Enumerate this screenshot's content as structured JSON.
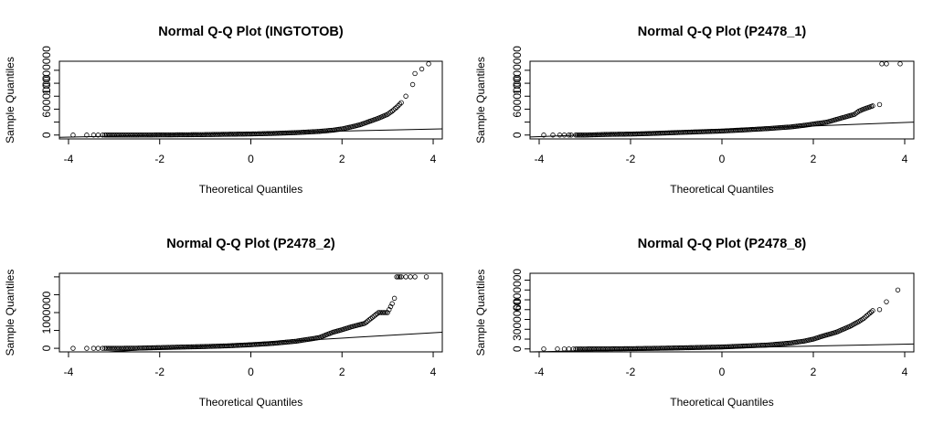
{
  "chart_data": [
    {
      "type": "scatter",
      "title": "Normal Q-Q Plot (INGTOTOB)",
      "xlabel": "Theoretical Quantiles",
      "ylabel": "Sample Quantiles",
      "xlim": [
        -4.2,
        4.2
      ],
      "ylim": [
        -600000,
        11400000
      ],
      "xticks": [
        -4,
        -2,
        0,
        2,
        4
      ],
      "yticks": [
        0,
        2000000,
        4000000,
        6000000,
        8000000,
        10000000
      ],
      "ytick_labels": [
        "0",
        "",
        "",
        "6000000",
        "",
        "10000000"
      ],
      "reference_line": [
        [
          -4.2,
          -350000
        ],
        [
          4.2,
          950000
        ]
      ],
      "points": [
        [
          -3.9,
          0
        ],
        [
          -3.6,
          0
        ],
        [
          -3.45,
          0
        ],
        [
          -3.35,
          0
        ],
        [
          -3.25,
          0
        ],
        [
          -3.2,
          0
        ],
        [
          -3.0,
          0
        ],
        [
          -2.5,
          0
        ],
        [
          -2.0,
          20000
        ],
        [
          -1.5,
          40000
        ],
        [
          -1.0,
          70000
        ],
        [
          -0.5,
          120000
        ],
        [
          0,
          170000
        ],
        [
          0.5,
          250000
        ],
        [
          1.0,
          380000
        ],
        [
          1.5,
          560000
        ],
        [
          1.8,
          750000
        ],
        [
          2.0,
          950000
        ],
        [
          2.2,
          1250000
        ],
        [
          2.4,
          1600000
        ],
        [
          2.6,
          2100000
        ],
        [
          2.8,
          2600000
        ],
        [
          3.0,
          3200000
        ],
        [
          3.1,
          3700000
        ],
        [
          3.2,
          4300000
        ],
        [
          3.3,
          5000000
        ],
        [
          3.4,
          6000000
        ],
        [
          3.55,
          7800000
        ],
        [
          3.6,
          9500000
        ],
        [
          3.75,
          10200000
        ],
        [
          3.9,
          11000000
        ]
      ]
    },
    {
      "type": "scatter",
      "title": "Normal Q-Q Plot (P2478_1)",
      "xlabel": "Theoretical Quantiles",
      "ylabel": "Sample Quantiles",
      "xlim": [
        -4.2,
        4.2
      ],
      "ylim": [
        -600000,
        11400000
      ],
      "xticks": [
        -4,
        -2,
        0,
        2,
        4
      ],
      "yticks": [
        0,
        2000000,
        4000000,
        6000000,
        8000000,
        10000000
      ],
      "ytick_labels": [
        "0",
        "",
        "",
        "6000000",
        "",
        "10000000"
      ],
      "reference_line": [
        [
          -4.2,
          -300000
        ],
        [
          4.2,
          2000000
        ]
      ],
      "points": [
        [
          -3.9,
          0
        ],
        [
          -3.7,
          0
        ],
        [
          -3.55,
          0
        ],
        [
          -3.45,
          0
        ],
        [
          -3.35,
          0
        ],
        [
          -3.3,
          0
        ],
        [
          -3.2,
          0
        ],
        [
          -3.0,
          0
        ],
        [
          -2.5,
          100000
        ],
        [
          -2.0,
          150000
        ],
        [
          -1.5,
          250000
        ],
        [
          -1.0,
          380000
        ],
        [
          -0.5,
          500000
        ],
        [
          0,
          620000
        ],
        [
          0.5,
          800000
        ],
        [
          1.0,
          1000000
        ],
        [
          1.5,
          1250000
        ],
        [
          1.8,
          1500000
        ],
        [
          2.0,
          1700000
        ],
        [
          2.3,
          2000000
        ],
        [
          2.6,
          2600000
        ],
        [
          2.9,
          3200000
        ],
        [
          3.0,
          3700000
        ],
        [
          3.1,
          4000000
        ],
        [
          3.3,
          4500000
        ],
        [
          3.45,
          4700000
        ],
        [
          3.5,
          11000000
        ],
        [
          3.6,
          11000000
        ],
        [
          3.9,
          11000000
        ]
      ]
    },
    {
      "type": "scatter",
      "title": "Normal Q-Q Plot (P2478_2)",
      "xlabel": "Theoretical Quantiles",
      "ylabel": "Sample Quantiles",
      "xlim": [
        -4.2,
        4.2
      ],
      "ylim": [
        -100000,
        2100000
      ],
      "xticks": [
        -4,
        -2,
        0,
        2,
        4
      ],
      "yticks": [
        0,
        500000,
        1000000,
        1500000,
        2000000
      ],
      "ytick_labels": [
        "0",
        "",
        "1000000",
        "",
        ""
      ],
      "reference_line": [
        [
          -4.2,
          -180000
        ],
        [
          4.2,
          450000
        ]
      ],
      "points": [
        [
          -3.9,
          0
        ],
        [
          -3.6,
          0
        ],
        [
          -3.45,
          0
        ],
        [
          -3.35,
          0
        ],
        [
          -3.25,
          0
        ],
        [
          -3.2,
          0
        ],
        [
          -3.0,
          0
        ],
        [
          -2.5,
          5000
        ],
        [
          -2.0,
          20000
        ],
        [
          -1.5,
          35000
        ],
        [
          -1.0,
          50000
        ],
        [
          -0.5,
          70000
        ],
        [
          0,
          100000
        ],
        [
          0.5,
          140000
        ],
        [
          1.0,
          200000
        ],
        [
          1.5,
          300000
        ],
        [
          1.8,
          450000
        ],
        [
          2.0,
          520000
        ],
        [
          2.2,
          600000
        ],
        [
          2.5,
          700000
        ],
        [
          2.8,
          1000000
        ],
        [
          3.0,
          1000000
        ],
        [
          3.1,
          1250000
        ],
        [
          3.15,
          1400000
        ],
        [
          3.2,
          2000000
        ],
        [
          3.3,
          2000000
        ],
        [
          3.4,
          2000000
        ],
        [
          3.5,
          2000000
        ],
        [
          3.6,
          2000000
        ],
        [
          3.85,
          2000000
        ]
      ]
    },
    {
      "type": "scatter",
      "title": "Normal Q-Q Plot (P2478_8)",
      "xlabel": "Theoretical Quantiles",
      "ylabel": "Sample Quantiles",
      "xlim": [
        -4.2,
        4.2
      ],
      "ylim": [
        -300000,
        7700000
      ],
      "xticks": [
        -4,
        -2,
        0,
        2,
        4
      ],
      "yticks": [
        0,
        1000000,
        2000000,
        3000000,
        4000000,
        5000000,
        6000000,
        7000000
      ],
      "ytick_labels": [
        "0",
        "",
        "",
        "3000000",
        "",
        "",
        "6000000",
        ""
      ],
      "reference_line": [
        [
          -4.2,
          -300000
        ],
        [
          4.2,
          500000
        ]
      ],
      "points": [
        [
          -3.9,
          0
        ],
        [
          -3.6,
          0
        ],
        [
          -3.45,
          0
        ],
        [
          -3.35,
          0
        ],
        [
          -3.25,
          0
        ],
        [
          -3.2,
          0
        ],
        [
          -3.0,
          0
        ],
        [
          -2.5,
          10000
        ],
        [
          -2.0,
          30000
        ],
        [
          -1.5,
          60000
        ],
        [
          -1.0,
          100000
        ],
        [
          -0.5,
          150000
        ],
        [
          0,
          200000
        ],
        [
          0.5,
          300000
        ],
        [
          1.0,
          400000
        ],
        [
          1.5,
          600000
        ],
        [
          1.8,
          800000
        ],
        [
          2.0,
          1000000
        ],
        [
          2.2,
          1300000
        ],
        [
          2.5,
          1700000
        ],
        [
          2.8,
          2300000
        ],
        [
          3.0,
          2800000
        ],
        [
          3.1,
          3100000
        ],
        [
          3.2,
          3500000
        ],
        [
          3.3,
          3900000
        ],
        [
          3.45,
          4000000
        ],
        [
          3.6,
          4800000
        ],
        [
          3.85,
          6000000
        ]
      ]
    }
  ]
}
